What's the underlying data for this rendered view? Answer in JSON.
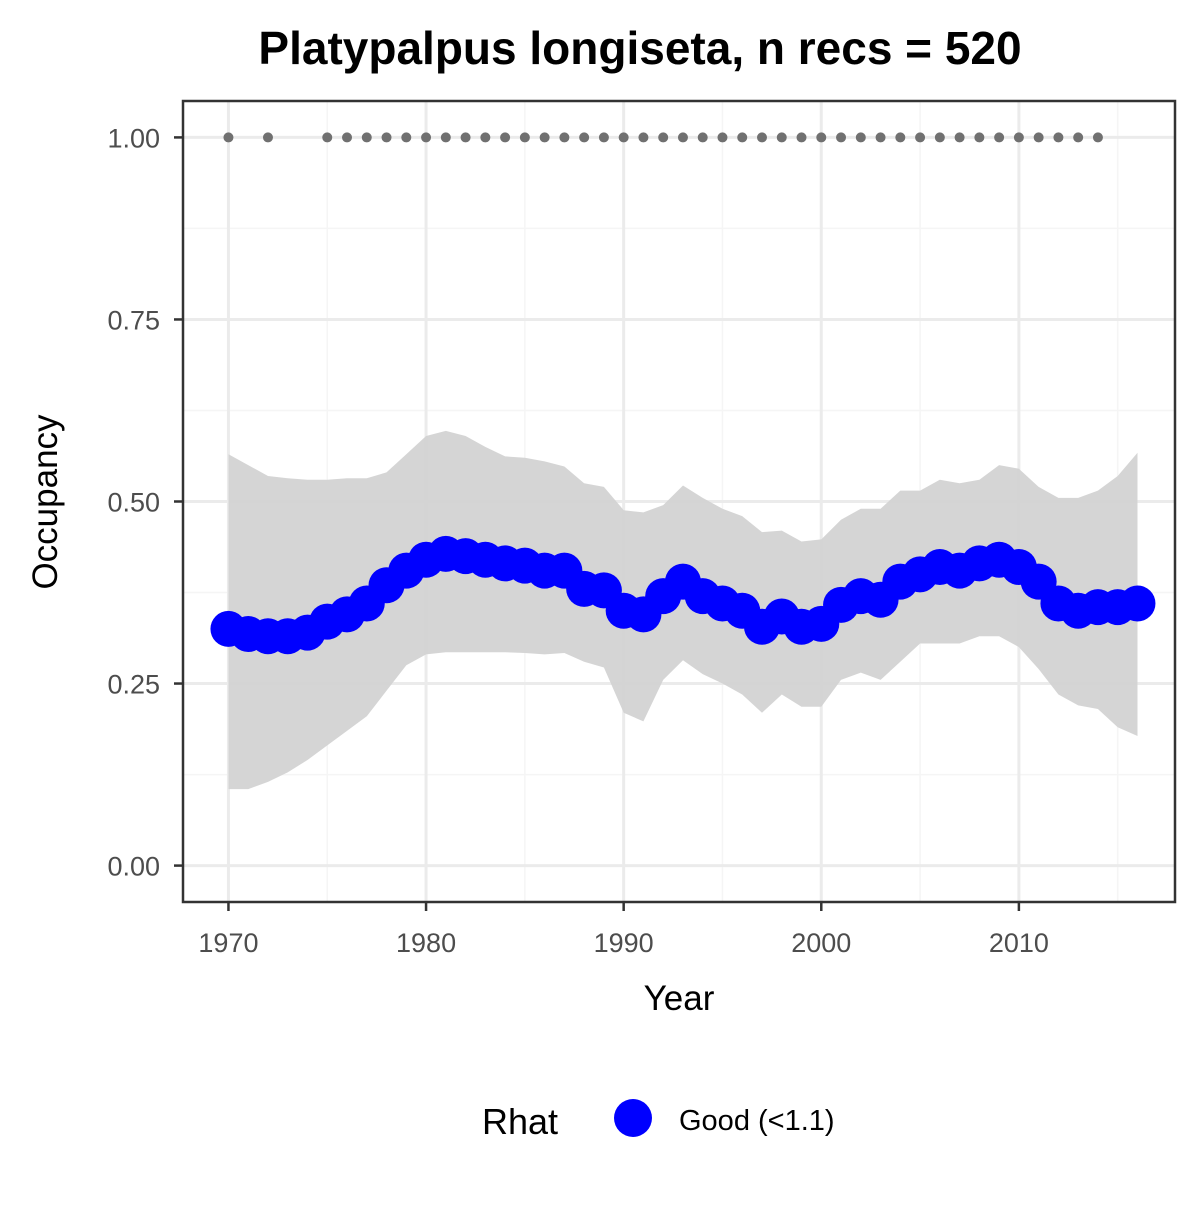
{
  "chart_data": {
    "type": "line",
    "title": "Platypalpus longiseta, n recs = 520",
    "xlabel": "Year",
    "ylabel": "Occupancy",
    "xlim": [
      1967.7,
      2017.9
    ],
    "ylim": [
      -0.05,
      1.05
    ],
    "x_ticks": [
      1970,
      1980,
      1990,
      2000,
      2010
    ],
    "x_tick_labels": [
      "1970",
      "1980",
      "1990",
      "2000",
      "2010"
    ],
    "x_minor_ticks": [
      1975,
      1985,
      1995,
      2005,
      2015
    ],
    "y_ticks": [
      0,
      0.25,
      0.5,
      0.75,
      1.0
    ],
    "y_tick_labels": [
      "0.00",
      "0.25",
      "0.50",
      "0.75",
      "1.00"
    ],
    "y_minor_ticks": [
      0.125,
      0.375,
      0.625,
      0.875
    ],
    "grid": true,
    "legend": {
      "position": "bottom",
      "title": "Rhat",
      "entries": [
        {
          "label": "Good (<1.1)",
          "color": "#0000ff"
        }
      ]
    },
    "series": [
      {
        "x": [
          1970,
          1971,
          1972,
          1973,
          1974,
          1975,
          1976,
          1977,
          1978,
          1979,
          1980,
          1981,
          1982,
          1983,
          1984,
          1985,
          1986,
          1987,
          1988,
          1989,
          1990,
          1991,
          1992,
          1993,
          1994,
          1995,
          1996,
          1997,
          1998,
          1999,
          2000,
          2001,
          2002,
          2003,
          2004,
          2005,
          2006,
          2007,
          2008,
          2009,
          2010,
          2011,
          2012,
          2013,
          2014,
          2015,
          2016
        ],
        "y": [
          0.325,
          0.318,
          0.315,
          0.315,
          0.32,
          0.335,
          0.345,
          0.36,
          0.385,
          0.405,
          0.42,
          0.428,
          0.425,
          0.42,
          0.415,
          0.412,
          0.405,
          0.405,
          0.38,
          0.378,
          0.35,
          0.345,
          0.37,
          0.39,
          0.37,
          0.36,
          0.35,
          0.328,
          0.342,
          0.328,
          0.332,
          0.358,
          0.37,
          0.365,
          0.39,
          0.4,
          0.41,
          0.405,
          0.415,
          0.42,
          0.41,
          0.39,
          0.36,
          0.35,
          0.355,
          0.355,
          0.36
        ],
        "lower": [
          0.105,
          0.105,
          0.115,
          0.128,
          0.145,
          0.165,
          0.185,
          0.205,
          0.24,
          0.275,
          0.29,
          0.293,
          0.293,
          0.293,
          0.293,
          0.292,
          0.29,
          0.292,
          0.28,
          0.272,
          0.21,
          0.198,
          0.255,
          0.282,
          0.263,
          0.25,
          0.235,
          0.21,
          0.235,
          0.218,
          0.218,
          0.255,
          0.265,
          0.255,
          0.28,
          0.305,
          0.305,
          0.305,
          0.315,
          0.315,
          0.3,
          0.27,
          0.235,
          0.22,
          0.215,
          0.19,
          0.178
        ],
        "upper": [
          0.565,
          0.55,
          0.535,
          0.532,
          0.53,
          0.53,
          0.532,
          0.532,
          0.54,
          0.565,
          0.59,
          0.597,
          0.59,
          0.575,
          0.562,
          0.56,
          0.555,
          0.548,
          0.525,
          0.52,
          0.488,
          0.485,
          0.495,
          0.522,
          0.505,
          0.49,
          0.48,
          0.458,
          0.46,
          0.445,
          0.448,
          0.475,
          0.49,
          0.49,
          0.515,
          0.515,
          0.53,
          0.525,
          0.53,
          0.55,
          0.545,
          0.52,
          0.505,
          0.505,
          0.515,
          0.535,
          0.567
        ]
      }
    ],
    "record_years": [
      1970,
      1972,
      1975,
      1976,
      1977,
      1978,
      1979,
      1980,
      1981,
      1982,
      1983,
      1984,
      1985,
      1986,
      1987,
      1988,
      1989,
      1990,
      1991,
      1992,
      1993,
      1994,
      1995,
      1996,
      1997,
      1998,
      1999,
      2000,
      2001,
      2002,
      2003,
      2004,
      2005,
      2006,
      2007,
      2008,
      2009,
      2010,
      2011,
      2012,
      2013,
      2014
    ],
    "record_marker_y": 1.0,
    "colors": {
      "points": "#0000ff",
      "ribbon": "#d3d3d3",
      "records": "#707070",
      "grid_major": "#ebebeb",
      "grid_minor": "#f5f5f5",
      "panel_border": "#333333"
    }
  }
}
